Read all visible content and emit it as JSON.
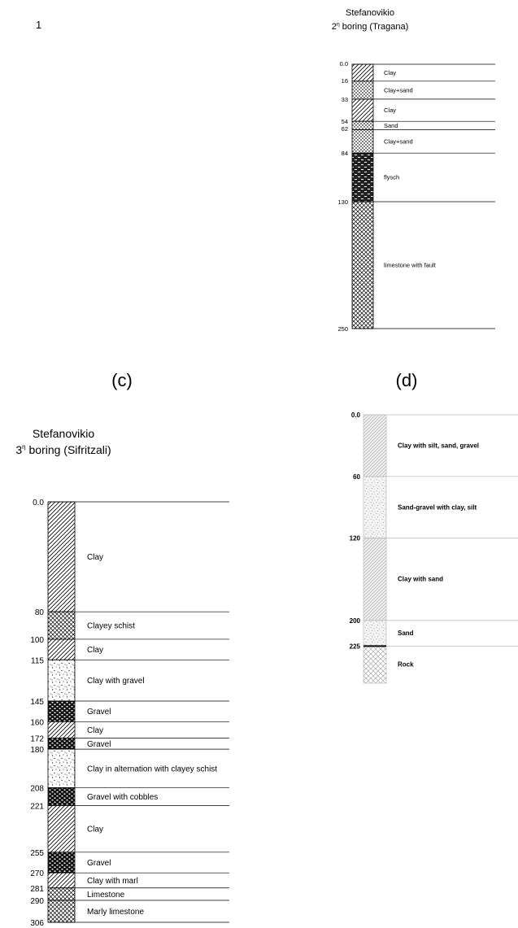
{
  "page_number": "1",
  "panel_c": {
    "label": "(c)",
    "title_line1": "Stefanovikio",
    "title_line2_prefix": "2",
    "title_line2_sup": "η",
    "title_line2_rest": " boring (Tragana)",
    "layers": [
      {
        "top": "0.0",
        "pattern": "hatch",
        "desc": "Clay"
      },
      {
        "top": "16",
        "pattern": "crosshatch-fine",
        "desc": "Clay+sand"
      },
      {
        "top": "33",
        "pattern": "hatch",
        "desc": "Clay"
      },
      {
        "top": "54",
        "pattern": "crosshatch-fine",
        "desc": "Sand"
      },
      {
        "top": "62",
        "pattern": "crosshatch-fine",
        "desc": "Clay+sand"
      },
      {
        "top": "84",
        "pattern": "flysch",
        "desc": "flysch"
      },
      {
        "top": "130",
        "pattern": "brick",
        "desc": "limestone with fault"
      }
    ],
    "bottom": "250"
  },
  "panel_d": {
    "label": "(d)",
    "layers": [
      {
        "top": "0.0",
        "pattern": "grey-hatch",
        "desc": "Clay with silt, sand, gravel"
      },
      {
        "top": "60",
        "pattern": "grey-dots",
        "desc": "Sand-gravel with clay, silt"
      },
      {
        "top": "120",
        "pattern": "grey-hatch",
        "desc": "Clay with sand"
      },
      {
        "top": "200",
        "pattern": "grey-dots",
        "desc": "Sand"
      },
      {
        "top": "225",
        "pattern": "grey-cross",
        "desc": "Rock"
      }
    ]
  },
  "panel_e": {
    "title_line1": "Stefanovikio",
    "title_line2_prefix": "3",
    "title_line2_sup": "η",
    "title_line2_rest": " boring (Sifritzali)",
    "layers": [
      {
        "top": "0.0",
        "pattern": "hatch",
        "desc": "Clay"
      },
      {
        "top": "80",
        "pattern": "brick",
        "desc": "Clayey schist"
      },
      {
        "top": "100",
        "pattern": "hatch",
        "desc": "Clay"
      },
      {
        "top": "115",
        "pattern": "dots",
        "desc": "Clay with gravel"
      },
      {
        "top": "145",
        "pattern": "gravel",
        "desc": "Gravel"
      },
      {
        "top": "160",
        "pattern": "hatch",
        "desc": "Clay"
      },
      {
        "top": "172",
        "pattern": "gravel",
        "desc": "Gravel"
      },
      {
        "top": "180",
        "pattern": "dots",
        "desc": "Clay in alternation with clayey schist"
      },
      {
        "top": "208",
        "pattern": "gravel",
        "desc": "Gravel with cobbles"
      },
      {
        "top": "221",
        "pattern": "hatch",
        "desc": "Clay"
      },
      {
        "top": "255",
        "pattern": "gravel",
        "desc": "Gravel"
      },
      {
        "top": "270",
        "pattern": "hatch",
        "desc": "Clay with marl"
      },
      {
        "top": "281",
        "pattern": "brick",
        "desc": "Limestone"
      },
      {
        "top": "290",
        "pattern": "brick",
        "desc": "Marly limestone"
      }
    ],
    "bottom": "306"
  }
}
